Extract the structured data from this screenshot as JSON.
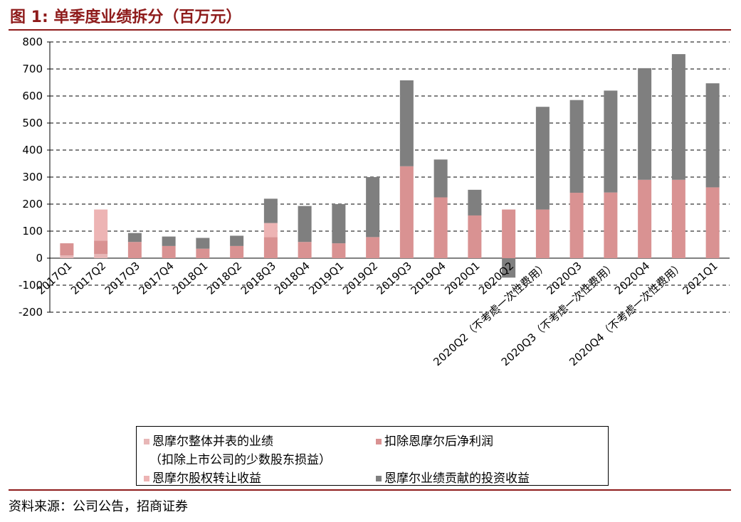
{
  "figure": {
    "title": "图 1:  单季度业绩拆分（百万元）",
    "source": "资料来源：公司公告，招商证券"
  },
  "colors": {
    "title": "#8e1b1b",
    "whole_consolidated": "#e8b7b7",
    "net_profit": "#d99292",
    "equity_transfer": "#edb4b4",
    "investment_income": "#7f7f7f"
  },
  "legend": {
    "items": [
      {
        "label": "恩摩尔整体并表的业绩",
        "sub": "（扣除上市公司的少数股东损益）",
        "color_key": "whole_consolidated"
      },
      {
        "label": "扣除恩摩尔后净利润",
        "color_key": "net_profit"
      },
      {
        "label": "恩摩尔股权转让收益",
        "color_key": "equity_transfer"
      },
      {
        "label": "恩摩尔业绩贡献的投资收益",
        "color_key": "investment_income"
      }
    ]
  },
  "chart_data": {
    "type": "bar",
    "stacked": true,
    "ylim": [
      -200,
      800
    ],
    "yticks": [
      -200,
      -100,
      0,
      100,
      200,
      300,
      400,
      500,
      600,
      700,
      800
    ],
    "grid": "dashed horizontal",
    "legend_position": "bottom",
    "categories": [
      "2017Q1",
      "2017Q2",
      "2017Q3",
      "2017Q4",
      "2018Q1",
      "2018Q2",
      "2018Q3",
      "2018Q4",
      "2019Q1",
      "2019Q2",
      "2019Q3",
      "2019Q4",
      "2020Q1",
      "2020Q2",
      "2020Q2（不考虑一次性费用）",
      "2020Q3",
      "2020Q3（不考虑一次性费用）",
      "2020Q4",
      "2020Q4（不考虑一次性费用）",
      "2021Q1"
    ],
    "series": [
      {
        "name": "恩摩尔整体并表的业绩（扣除上市公司的少数股东损益）",
        "color_key": "whole_consolidated",
        "values": [
          10,
          15,
          0,
          0,
          0,
          0,
          0,
          0,
          0,
          0,
          0,
          0,
          0,
          0,
          0,
          0,
          0,
          0,
          0,
          0
        ]
      },
      {
        "name": "扣除恩摩尔后净利润",
        "color_key": "net_profit",
        "values": [
          45,
          50,
          60,
          45,
          35,
          45,
          78,
          60,
          55,
          78,
          340,
          225,
          158,
          180,
          180,
          242,
          243,
          290,
          290,
          262
        ]
      },
      {
        "name": "恩摩尔股权转让收益",
        "color_key": "equity_transfer",
        "values": [
          0,
          115,
          0,
          0,
          0,
          0,
          52,
          0,
          0,
          0,
          0,
          0,
          0,
          0,
          0,
          0,
          0,
          0,
          0,
          0
        ]
      },
      {
        "name": "恩摩尔业绩贡献的投资收益",
        "color_key": "investment_income",
        "values": [
          0,
          0,
          33,
          35,
          40,
          38,
          90,
          133,
          145,
          222,
          318,
          140,
          95,
          -72,
          380,
          343,
          377,
          413,
          465,
          385
        ]
      }
    ]
  }
}
